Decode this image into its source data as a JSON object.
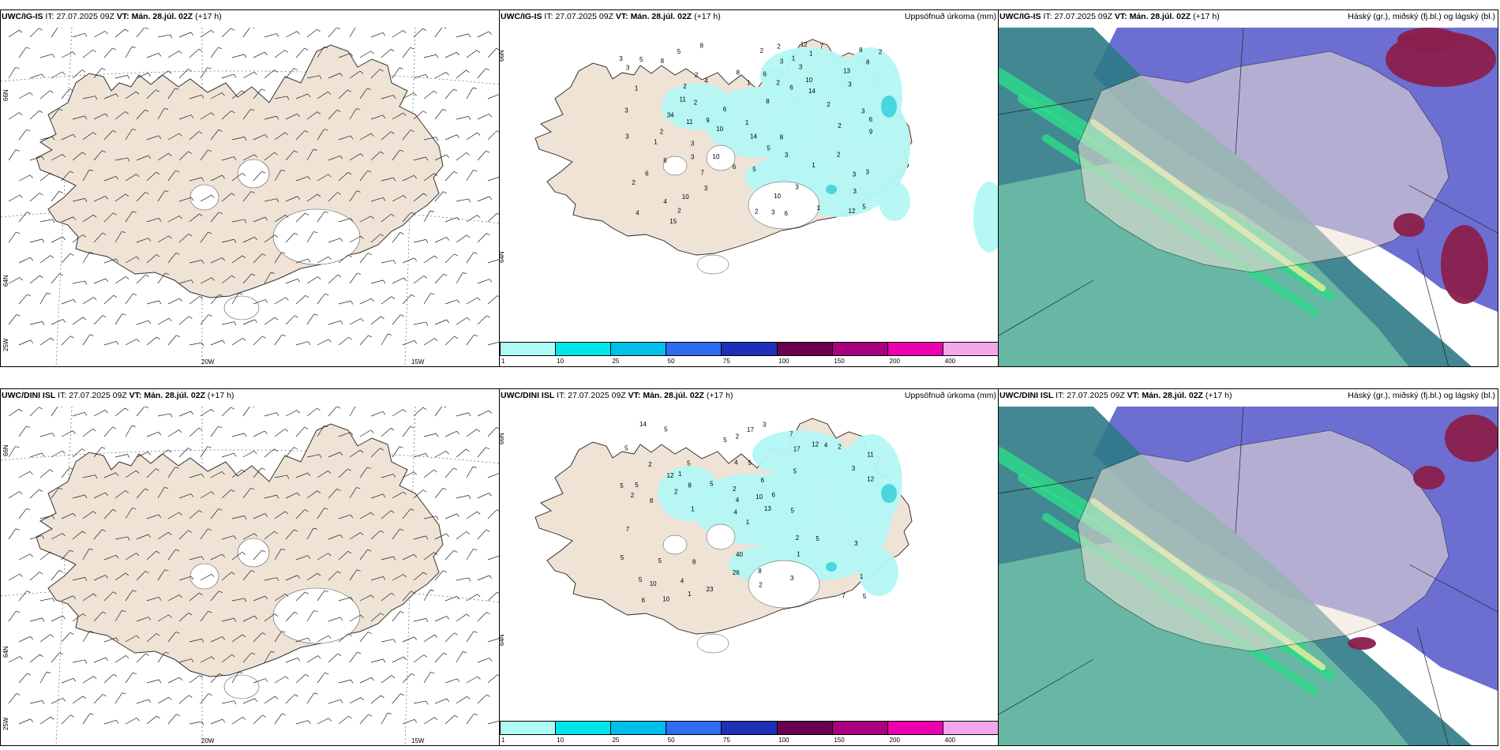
{
  "rows": [
    {
      "model": "UWC/IG-IS",
      "it_label": "IT:",
      "it_value": "27.07.2025 09Z",
      "vt_label": "VT:",
      "vt_value": "Mán. 28.júl. 02Z",
      "lead": "(+17 h)"
    },
    {
      "model": "UWC/DINI ISL",
      "it_label": "IT:",
      "it_value": "27.07.2025 09Z",
      "vt_label": "VT:",
      "vt_value": "Mán. 28.júl. 02Z",
      "lead": "(+17 h)"
    }
  ],
  "precip_title": "Uppsöfnuð úrkoma (mm)",
  "cloud_title": "Háský (gr.), miðský (fj.bl.) og lágský (bl.)",
  "colorbar": {
    "levels": [
      "1",
      "10",
      "25",
      "50",
      "75",
      "100",
      "150",
      "200",
      "400"
    ],
    "colors": [
      "#aefaf5",
      "#00e5e8",
      "#00bfe9",
      "#2e6cf0",
      "#1e2fb8",
      "#6a0050",
      "#a8007f",
      "#ec00b0",
      "#f4a6ea"
    ]
  },
  "wind_axis": {
    "x_labels": [
      "20W",
      "15W"
    ],
    "y_labels": [
      "66N",
      "64N",
      "25W"
    ]
  },
  "precip_axis": {
    "y_labels": [
      "66N",
      "64N"
    ]
  },
  "precip_values_top": [
    "4",
    "3",
    "6",
    "6",
    "10",
    "3",
    "10",
    "12",
    "3",
    "13",
    "11",
    "2",
    "2",
    "7",
    "6",
    "14",
    "3",
    "3",
    "8",
    "8",
    "5",
    "6",
    "4",
    "8",
    "8",
    "7",
    "4",
    "3",
    "3",
    "8",
    "2",
    "2",
    "2",
    "34",
    "9",
    "3",
    "3",
    "6",
    "1",
    "6",
    "5",
    "3",
    "8",
    "2",
    "14",
    "10",
    "12",
    "2",
    "1",
    "3",
    "3",
    "1",
    "1",
    "8",
    "8",
    "6",
    "2",
    "5",
    "3",
    "3",
    "3",
    "11",
    "9",
    "2",
    "2",
    "5",
    "3",
    "15",
    "10",
    "10",
    "3",
    "1",
    "2",
    "2",
    "1",
    "1",
    "1",
    "5",
    "2",
    "2"
  ],
  "precip_values_bottom": [
    "1",
    "2",
    "4",
    "5",
    "6",
    "8",
    "7",
    "5",
    "17",
    "13",
    "5",
    "5",
    "8",
    "11",
    "5",
    "10",
    "4",
    "6",
    "5",
    "5",
    "4",
    "5",
    "2",
    "2",
    "2",
    "12",
    "26",
    "4",
    "5",
    "12",
    "7",
    "1",
    "3",
    "2",
    "1",
    "1",
    "5",
    "6",
    "3",
    "5",
    "3",
    "14",
    "8",
    "2",
    "17",
    "1",
    "5",
    "1",
    "4",
    "5",
    "5",
    "40",
    "23",
    "8",
    "12",
    "7",
    "2",
    "2",
    "10",
    "10",
    "5",
    "3"
  ],
  "colors": {
    "land": "#efe3d6",
    "sea": "#ffffff",
    "precip_light": "#b3f7f4",
    "precip_mid": "#49d6dc",
    "cloud_high": "#2d7a86",
    "cloud_high_light": "#6fc0a8",
    "cloud_mid": "#5c5fcc",
    "cloud_low": "#8a1f4c",
    "green_band": "#2fd88a",
    "yellow_band": "#e9f29a"
  }
}
